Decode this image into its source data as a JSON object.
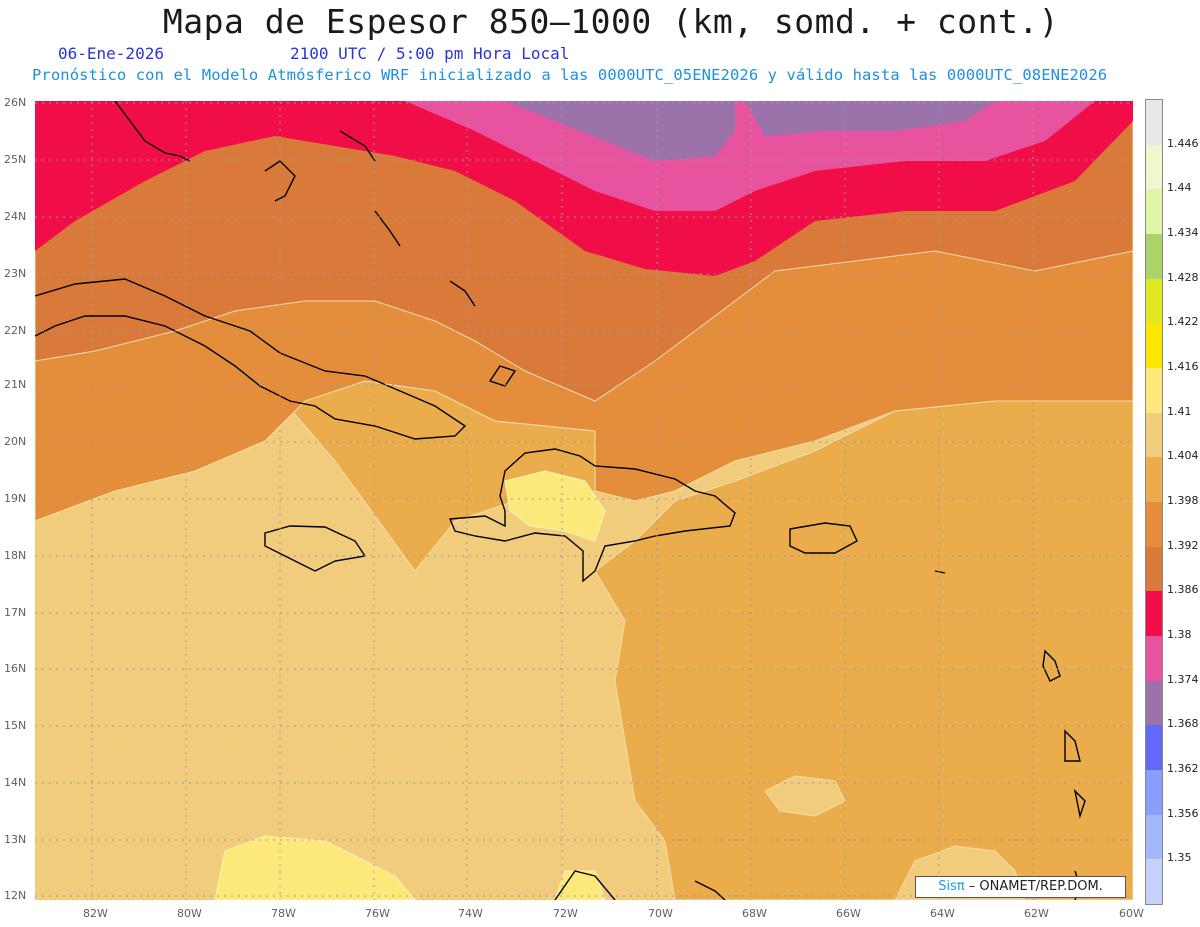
{
  "header": {
    "title": "Mapa de Espesor 850—1000 (km, somd. + cont.)",
    "date": "06-Ene-2026",
    "time": "2100 UTC / 5:00 pm Hora Local",
    "run_info": "Pronóstico con el Modelo Atmósferico WRF inicializado a las 0000UTC_05ENE2026 y válido hasta las  0000UTC_08ENE2026"
  },
  "axes": {
    "lat_labels": [
      "26N",
      "25N",
      "24N",
      "23N",
      "22N",
      "21N",
      "20N",
      "19N",
      "18N",
      "17N",
      "16N",
      "15N",
      "14N",
      "13N",
      "12N"
    ],
    "lon_labels": [
      "82W",
      "80W",
      "78W",
      "76W",
      "74W",
      "72W",
      "70W",
      "68W",
      "66W",
      "64W",
      "62W",
      "60W"
    ]
  },
  "legend": {
    "labels": [
      "1.446",
      "1.44",
      "1.434",
      "1.428",
      "1.422",
      "1.416",
      "1.41",
      "1.404",
      "1.398",
      "1.392",
      "1.386",
      "1.38",
      "1.374",
      "1.368",
      "1.362",
      "1.356",
      "1.35"
    ],
    "colors_top_to_bottom": [
      "#e8e8e8",
      "#f2f6cf",
      "#e0f4a8",
      "#acd26a",
      "#e2e820",
      "#fbe600",
      "#fde97a",
      "#f2cc7d",
      "#ebac4c",
      "#e48e3c",
      "#d9793a",
      "#f00d48",
      "#e853a0",
      "#9c72aa",
      "#6468f8",
      "#8c9efc",
      "#a3b8fb",
      "#c5d0fb"
    ]
  },
  "credit": {
    "brand": "Sisπ",
    "org": " – ONAMET/REP.DOM."
  },
  "colors": {
    "very_high": "#f00d48",
    "pink": "#e853a0",
    "purple": "#9c72aa",
    "dark_orange": "#d9793a",
    "orange": "#e48e3c",
    "light_orange": "#ebac4c",
    "tan": "#f2cc7d",
    "yellow": "#fde97a"
  }
}
